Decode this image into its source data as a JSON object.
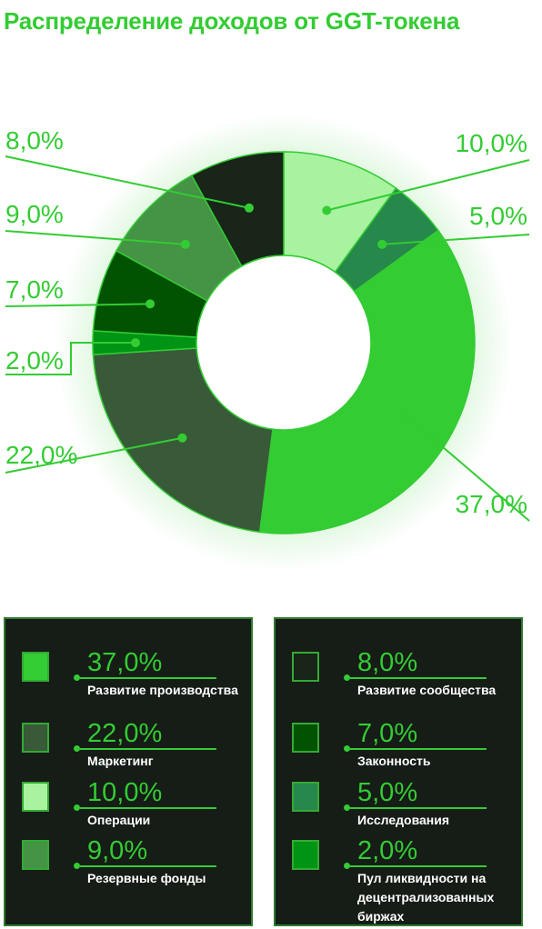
{
  "title": "Распределение доходов от GGT-токена",
  "chart_data": {
    "type": "pie",
    "variant": "donut",
    "title": "Распределение доходов от GGT-токена",
    "slices": [
      {
        "label": "Операции",
        "value": 10.0,
        "display": "10,0%",
        "color": "#a8f2a0"
      },
      {
        "label": "Исследования",
        "value": 5.0,
        "display": "5,0%",
        "color": "#26884a"
      },
      {
        "label": "Развитие производства",
        "value": 37.0,
        "display": "37,0%",
        "color": "#33cc33"
      },
      {
        "label": "Маркетинг",
        "value": 22.0,
        "display": "22,0%",
        "color": "#385a38"
      },
      {
        "label": "Пул ликвидности на децентрализованных биржах",
        "value": 2.0,
        "display": "2,0%",
        "color": "#009414"
      },
      {
        "label": "Законность",
        "value": 7.0,
        "display": "7,0%",
        "color": "#015201"
      },
      {
        "label": "Резервные фонды",
        "value": 9.0,
        "display": "9,0%",
        "color": "#459345"
      },
      {
        "label": "Развитие сообщества",
        "value": 8.0,
        "display": "8,0%",
        "color": "#182518"
      }
    ],
    "legend_placement": "bottom",
    "accent_color": "#33cc33",
    "legend_background": "#161c16"
  },
  "legend": {
    "left": [
      {
        "value": "37,0%",
        "label": "Развитие производства",
        "color": "#33cc33"
      },
      {
        "value": "22,0%",
        "label": "Маркетинг",
        "color": "#385a38"
      },
      {
        "value": "10,0%",
        "label": "Операции",
        "color": "#a8f2a0"
      },
      {
        "value": "9,0%",
        "label": "Резервные фонды",
        "color": "#459345"
      }
    ],
    "right": [
      {
        "value": "8,0%",
        "label": "Развитие сообщества",
        "color": "#182518"
      },
      {
        "value": "7,0%",
        "label": "Законность",
        "color": "#015201"
      },
      {
        "value": "5,0%",
        "label": "Исследования",
        "color": "#26884a"
      },
      {
        "value": "2,0%",
        "label": "Пул ликвидности на децентрализованных биржах",
        "color": "#009414"
      }
    ]
  }
}
